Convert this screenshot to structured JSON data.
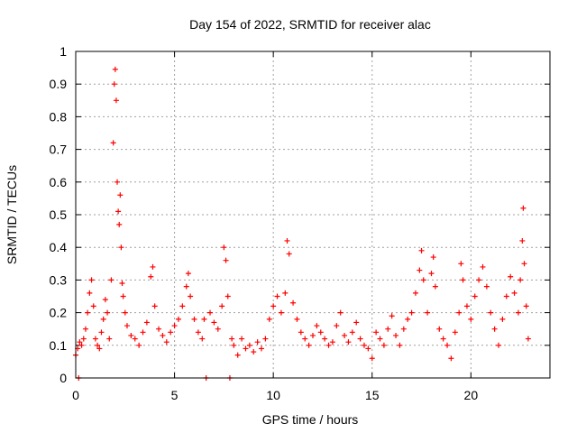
{
  "chart_data": {
    "type": "scatter",
    "title": "Day 154 of 2022, SRMTID for receiver alac",
    "xlabel": "GPS time / hours",
    "ylabel": "SRMTID / TECUs",
    "xlim": [
      0,
      24
    ],
    "ylim": [
      0,
      1
    ],
    "x_ticks": [
      0,
      5,
      10,
      15,
      20
    ],
    "y_ticks": [
      0,
      0.1,
      0.2,
      0.3,
      0.4,
      0.5,
      0.6,
      0.7,
      0.8,
      0.9,
      1
    ],
    "x_tick_labels": [
      "0",
      "5",
      "10",
      "15",
      "20"
    ],
    "y_tick_labels": [
      "0",
      "0.1",
      "0.2",
      "0.3",
      "0.4",
      "0.5",
      "0.6",
      "0.7",
      "0.8",
      "0.9",
      "1"
    ],
    "grid": true,
    "marker": "+",
    "color": "#ff0000",
    "series": [
      {
        "name": "SRMTID",
        "points": [
          [
            0.0,
            0.07
          ],
          [
            0.1,
            0.09
          ],
          [
            0.15,
            0.0
          ],
          [
            0.2,
            0.11
          ],
          [
            0.3,
            0.1
          ],
          [
            0.4,
            0.12
          ],
          [
            0.5,
            0.15
          ],
          [
            0.6,
            0.2
          ],
          [
            0.7,
            0.26
          ],
          [
            0.8,
            0.3
          ],
          [
            0.9,
            0.22
          ],
          [
            1.0,
            0.12
          ],
          [
            1.1,
            0.1
          ],
          [
            1.2,
            0.09
          ],
          [
            1.3,
            0.14
          ],
          [
            1.4,
            0.18
          ],
          [
            1.5,
            0.24
          ],
          [
            1.6,
            0.2
          ],
          [
            1.7,
            0.12
          ],
          [
            1.8,
            0.3
          ],
          [
            1.9,
            0.72
          ],
          [
            1.95,
            0.9
          ],
          [
            2.0,
            0.945
          ],
          [
            2.05,
            0.85
          ],
          [
            2.1,
            0.6
          ],
          [
            2.15,
            0.51
          ],
          [
            2.2,
            0.47
          ],
          [
            2.25,
            0.56
          ],
          [
            2.3,
            0.4
          ],
          [
            2.35,
            0.29
          ],
          [
            2.4,
            0.25
          ],
          [
            2.5,
            0.2
          ],
          [
            2.6,
            0.16
          ],
          [
            2.8,
            0.13
          ],
          [
            3.0,
            0.12
          ],
          [
            3.2,
            0.1
          ],
          [
            3.4,
            0.14
          ],
          [
            3.6,
            0.17
          ],
          [
            3.8,
            0.31
          ],
          [
            3.9,
            0.34
          ],
          [
            4.0,
            0.22
          ],
          [
            4.2,
            0.15
          ],
          [
            4.4,
            0.13
          ],
          [
            4.6,
            0.11
          ],
          [
            4.8,
            0.14
          ],
          [
            5.0,
            0.16
          ],
          [
            5.2,
            0.18
          ],
          [
            5.4,
            0.22
          ],
          [
            5.6,
            0.28
          ],
          [
            5.7,
            0.32
          ],
          [
            5.8,
            0.25
          ],
          [
            6.0,
            0.18
          ],
          [
            6.2,
            0.14
          ],
          [
            6.4,
            0.12
          ],
          [
            6.5,
            0.18
          ],
          [
            6.6,
            0.0
          ],
          [
            6.8,
            0.2
          ],
          [
            7.0,
            0.17
          ],
          [
            7.2,
            0.15
          ],
          [
            7.4,
            0.22
          ],
          [
            7.5,
            0.4
          ],
          [
            7.6,
            0.36
          ],
          [
            7.7,
            0.25
          ],
          [
            7.8,
            0.0
          ],
          [
            7.9,
            0.12
          ],
          [
            8.0,
            0.1
          ],
          [
            8.2,
            0.07
          ],
          [
            8.4,
            0.12
          ],
          [
            8.6,
            0.09
          ],
          [
            8.8,
            0.1
          ],
          [
            9.0,
            0.08
          ],
          [
            9.2,
            0.11
          ],
          [
            9.4,
            0.09
          ],
          [
            9.6,
            0.12
          ],
          [
            9.8,
            0.18
          ],
          [
            10.0,
            0.22
          ],
          [
            10.2,
            0.25
          ],
          [
            10.4,
            0.2
          ],
          [
            10.6,
            0.26
          ],
          [
            10.7,
            0.42
          ],
          [
            10.8,
            0.38
          ],
          [
            11.0,
            0.23
          ],
          [
            11.2,
            0.18
          ],
          [
            11.4,
            0.14
          ],
          [
            11.6,
            0.12
          ],
          [
            11.8,
            0.1
          ],
          [
            12.0,
            0.13
          ],
          [
            12.2,
            0.16
          ],
          [
            12.4,
            0.14
          ],
          [
            12.6,
            0.12
          ],
          [
            12.8,
            0.1
          ],
          [
            13.0,
            0.11
          ],
          [
            13.2,
            0.16
          ],
          [
            13.4,
            0.2
          ],
          [
            13.6,
            0.13
          ],
          [
            13.8,
            0.11
          ],
          [
            14.0,
            0.14
          ],
          [
            14.2,
            0.17
          ],
          [
            14.4,
            0.12
          ],
          [
            14.6,
            0.1
          ],
          [
            14.8,
            0.09
          ],
          [
            15.0,
            0.06
          ],
          [
            15.2,
            0.14
          ],
          [
            15.4,
            0.12
          ],
          [
            15.6,
            0.1
          ],
          [
            15.8,
            0.15
          ],
          [
            16.0,
            0.19
          ],
          [
            16.2,
            0.13
          ],
          [
            16.4,
            0.1
          ],
          [
            16.6,
            0.15
          ],
          [
            16.8,
            0.18
          ],
          [
            17.0,
            0.2
          ],
          [
            17.2,
            0.26
          ],
          [
            17.4,
            0.33
          ],
          [
            17.5,
            0.39
          ],
          [
            17.6,
            0.3
          ],
          [
            17.8,
            0.2
          ],
          [
            18.0,
            0.32
          ],
          [
            18.1,
            0.37
          ],
          [
            18.2,
            0.28
          ],
          [
            18.4,
            0.15
          ],
          [
            18.6,
            0.12
          ],
          [
            18.8,
            0.1
          ],
          [
            19.0,
            0.06
          ],
          [
            19.2,
            0.14
          ],
          [
            19.4,
            0.2
          ],
          [
            19.5,
            0.35
          ],
          [
            19.6,
            0.3
          ],
          [
            19.8,
            0.22
          ],
          [
            20.0,
            0.18
          ],
          [
            20.2,
            0.25
          ],
          [
            20.4,
            0.3
          ],
          [
            20.6,
            0.34
          ],
          [
            20.8,
            0.28
          ],
          [
            21.0,
            0.2
          ],
          [
            21.2,
            0.15
          ],
          [
            21.4,
            0.1
          ],
          [
            21.6,
            0.18
          ],
          [
            21.8,
            0.25
          ],
          [
            22.0,
            0.31
          ],
          [
            22.2,
            0.26
          ],
          [
            22.4,
            0.2
          ],
          [
            22.5,
            0.3
          ],
          [
            22.6,
            0.42
          ],
          [
            22.65,
            0.52
          ],
          [
            22.7,
            0.35
          ],
          [
            22.8,
            0.22
          ],
          [
            22.9,
            0.12
          ]
        ]
      }
    ]
  }
}
